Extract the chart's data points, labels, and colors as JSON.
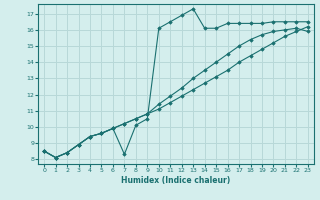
{
  "xlabel": "Humidex (Indice chaleur)",
  "ylabel": "",
  "bg_color": "#d4eeed",
  "line_color": "#1a7070",
  "grid_color": "#b8d8d8",
  "xlim": [
    -0.5,
    23.5
  ],
  "ylim": [
    7.7,
    17.6
  ],
  "xticks": [
    0,
    1,
    2,
    3,
    4,
    5,
    6,
    7,
    8,
    9,
    10,
    11,
    12,
    13,
    14,
    15,
    16,
    17,
    18,
    19,
    20,
    21,
    22,
    23
  ],
  "yticks": [
    8,
    9,
    10,
    11,
    12,
    13,
    14,
    15,
    16,
    17
  ],
  "series1_x": [
    0,
    1,
    2,
    3,
    4,
    5,
    6,
    7,
    8,
    9,
    10,
    11,
    12,
    13,
    14,
    15,
    16,
    17,
    18,
    19,
    20,
    21,
    22,
    23
  ],
  "series1_y": [
    8.5,
    8.1,
    8.4,
    8.9,
    9.4,
    9.6,
    9.9,
    8.3,
    10.1,
    10.5,
    16.1,
    16.5,
    16.9,
    17.3,
    16.1,
    16.1,
    16.4,
    16.4,
    16.4,
    16.4,
    16.5,
    16.5,
    16.5,
    16.5
  ],
  "series2_x": [
    0,
    1,
    2,
    3,
    4,
    5,
    6,
    7,
    8,
    9,
    10,
    11,
    12,
    13,
    14,
    15,
    16,
    17,
    18,
    19,
    20,
    21,
    22,
    23
  ],
  "series2_y": [
    8.5,
    8.1,
    8.4,
    8.9,
    9.4,
    9.6,
    9.9,
    10.2,
    10.5,
    10.8,
    11.1,
    11.5,
    11.9,
    12.3,
    12.7,
    13.1,
    13.5,
    14.0,
    14.4,
    14.8,
    15.2,
    15.6,
    15.9,
    16.2
  ],
  "series3_x": [
    0,
    1,
    2,
    3,
    4,
    5,
    6,
    7,
    8,
    9,
    10,
    11,
    12,
    13,
    14,
    15,
    16,
    17,
    18,
    19,
    20,
    21,
    22,
    23
  ],
  "series3_y": [
    8.5,
    8.1,
    8.4,
    8.9,
    9.4,
    9.6,
    9.9,
    10.2,
    10.5,
    10.8,
    11.4,
    11.9,
    12.4,
    13.0,
    13.5,
    14.0,
    14.5,
    15.0,
    15.4,
    15.7,
    15.9,
    16.0,
    16.1,
    15.9
  ]
}
